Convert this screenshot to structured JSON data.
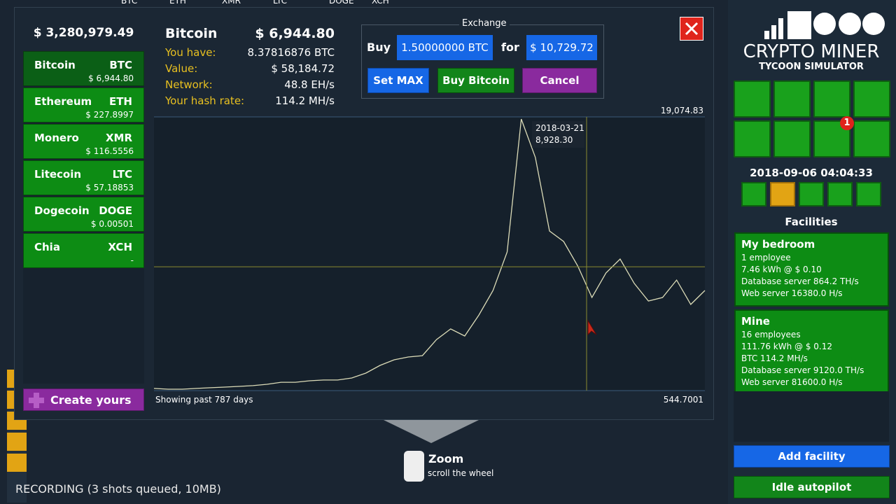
{
  "background": {
    "tickers": [
      "BTC",
      "ETH",
      "XMR",
      "LTC",
      "DOGE",
      "XCH"
    ],
    "hint": {
      "title": "Zoom",
      "text": "scroll the wheel"
    },
    "status": "RECORDING (3 shots queued, 10MB)"
  },
  "modal": {
    "balance": "$ 3,280,979.49",
    "coins": [
      {
        "name": "Bitcoin",
        "ticker": "BTC",
        "price": "$ 6,944.80"
      },
      {
        "name": "Ethereum",
        "ticker": "ETH",
        "price": "$ 227.8997"
      },
      {
        "name": "Monero",
        "ticker": "XMR",
        "price": "$ 116.5556"
      },
      {
        "name": "Litecoin",
        "ticker": "LTC",
        "price": "$ 57.18853"
      },
      {
        "name": "Dogecoin",
        "ticker": "DOGE",
        "price": "$ 0.00501"
      },
      {
        "name": "Chia",
        "ticker": "XCH",
        "price": "-"
      }
    ],
    "create_button": "Create yours",
    "info": {
      "name": "Bitcoin",
      "price": "$ 6,944.80",
      "rows": [
        {
          "label": "You have:",
          "value": "8.37816876 BTC"
        },
        {
          "label": "Value:",
          "value": "$ 58,184.72"
        },
        {
          "label": "Network:",
          "value": "48.8 EH/s"
        },
        {
          "label": "Your hash rate:",
          "value": "114.2 MH/s"
        }
      ]
    },
    "exchange": {
      "title": "Exchange",
      "buy_label": "Buy",
      "amount": "1.50000000 BTC",
      "for_label": "for",
      "cost": "$ 10,729.72",
      "buttons": [
        "Set MAX",
        "Buy Bitcoin",
        "Cancel"
      ]
    },
    "chart": {
      "type": "line",
      "color": "#dcdcb8",
      "prices": [
        690,
        640,
        640,
        690,
        740,
        780,
        830,
        880,
        970,
        1110,
        1110,
        1210,
        1260,
        1260,
        1400,
        1730,
        2250,
        2630,
        2820,
        2910,
        4000,
        4720,
        4240,
        5660,
        7320,
        9930,
        18930,
        16330,
        11350,
        10640,
        8980,
        6850,
        8510,
        9450,
        7800,
        6610,
        6850,
        8030,
        6380,
        7320
      ],
      "ylim": [
        {
          "value": 544.7001,
          "label": "544.7001"
        },
        {
          "value": 19074.83,
          "label": "19,074.83"
        }
      ],
      "footer": "Showing past 787 days",
      "tooltip": {
        "date": "2018-03-21",
        "value": {
          "value": 8928.3,
          "label": "8,928.30"
        }
      }
    }
  },
  "sidebar": {
    "logo_title": "CRYPTO MINER",
    "logo_subtitle": "TYCOON SIMULATOR",
    "badge": "1",
    "datetime": "2018-09-06 04:04:33",
    "facilities_title": "Facilities",
    "facilities": [
      {
        "name": "My bedroom",
        "lines": [
          "1 employee",
          "7.46 kWh @ $ 0.10",
          "Database server 864.2 TH/s",
          "Web server 16380.0 H/s"
        ]
      },
      {
        "name": "Mine",
        "lines": [
          "16 employees",
          "111.76 kWh @ $ 0.12",
          "BTC 114.2 MH/s",
          "Database server 9120.0 TH/s",
          "Web server 81600.0 H/s"
        ]
      }
    ],
    "buttons": [
      "Add facility",
      "Idle autopilot"
    ]
  }
}
